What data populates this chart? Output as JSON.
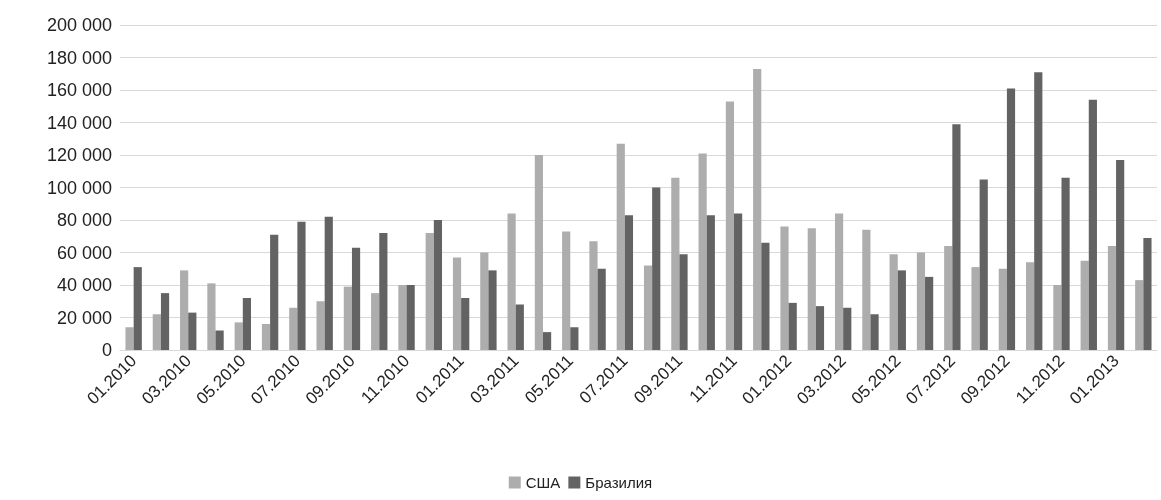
{
  "chart_data": {
    "type": "bar",
    "categories": [
      "01.2010",
      null,
      "03.2010",
      null,
      "05.2010",
      null,
      "07.2010",
      null,
      "09.2010",
      null,
      "11.2010",
      null,
      "01.2011",
      null,
      "03.2011",
      null,
      "05.2011",
      null,
      "07.2011",
      null,
      "09.2011",
      null,
      "11.2011",
      null,
      "01.2012",
      null,
      "03.2012",
      null,
      "05.2012",
      null,
      "07.2012",
      null,
      "09.2012",
      null,
      "11.2012",
      null,
      "01.2013",
      null
    ],
    "series": [
      {
        "name": "США",
        "color": "#adadad",
        "values": [
          14000,
          22000,
          49000,
          41000,
          17000,
          16000,
          26000,
          30000,
          39000,
          35000,
          40000,
          72000,
          57000,
          60000,
          84000,
          120000,
          73000,
          67000,
          127000,
          52000,
          106000,
          121000,
          153000,
          173000,
          76000,
          75000,
          84000,
          74000,
          59000,
          60000,
          64000,
          51000,
          50000,
          54000,
          40000,
          55000,
          64000,
          43000
        ]
      },
      {
        "name": "Бразилия",
        "color": "#636363",
        "values": [
          51000,
          35000,
          23000,
          12000,
          32000,
          71000,
          79000,
          82000,
          63000,
          72000,
          40000,
          80000,
          32000,
          49000,
          28000,
          11000,
          14000,
          50000,
          83000,
          100000,
          59000,
          83000,
          84000,
          66000,
          29000,
          27000,
          26000,
          22000,
          49000,
          45000,
          139000,
          105000,
          161000,
          171000,
          106000,
          154000,
          117000,
          69000
        ]
      }
    ],
    "ylim": [
      0,
      200000
    ],
    "yticks": [
      0,
      {
        "value": 20000,
        "label": "20 000"
      },
      {
        "value": 40000,
        "label": "40 000"
      },
      {
        "value": 60000,
        "label": "60 000"
      },
      {
        "value": 80000,
        "label": "80 000"
      },
      {
        "value": 100000,
        "label": "100 000"
      },
      {
        "value": 120000,
        "label": "120 000"
      },
      {
        "value": 140000,
        "label": "140 000"
      },
      {
        "value": 160000,
        "label": "160 000"
      },
      {
        "value": 180000,
        "label": "180 000"
      },
      {
        "value": 200000,
        "label": "200 000"
      }
    ],
    "grid": "y",
    "legend": "bottom"
  }
}
